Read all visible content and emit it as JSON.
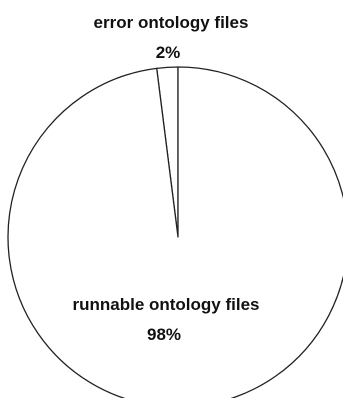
{
  "chart_data": {
    "type": "pie",
    "categories": [
      "error ontology files",
      "runnable ontology files"
    ],
    "values": [
      2,
      98
    ],
    "value_labels": [
      "2%",
      "98%"
    ],
    "colors": {
      "fill": "#ffffff",
      "stroke": "#222222"
    },
    "start_angle_deg": 0,
    "direction": "counterclockwise",
    "legend": "none"
  }
}
